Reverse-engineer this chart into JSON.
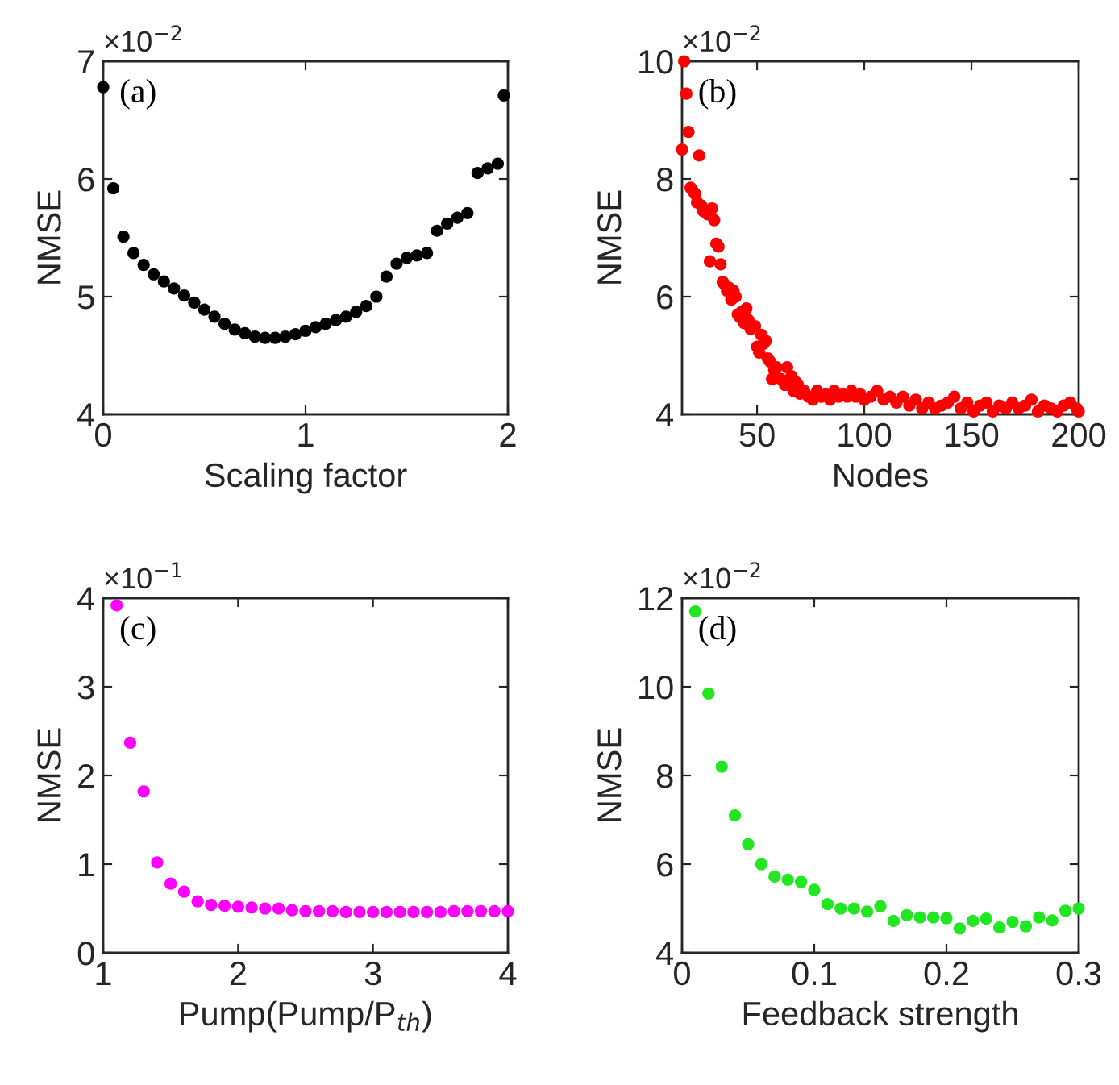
{
  "chart_data": [
    {
      "type": "scatter",
      "xlabel": "Scaling factor",
      "ylabel": "NMSE",
      "annotations": [
        "(a)",
        "×10$^{−2}$"
      ],
      "xlim": [
        0,
        2
      ],
      "ylim": [
        4,
        7
      ],
      "xticks": [
        0,
        1,
        2
      ],
      "yticks": [
        4,
        5,
        6,
        7
      ],
      "marker": "circle",
      "grid": false,
      "x": [
        0,
        0.05,
        0.1,
        0.15,
        0.2,
        0.25,
        0.3,
        0.35,
        0.4,
        0.45,
        0.5,
        0.55,
        0.6,
        0.65,
        0.7,
        0.75,
        0.8,
        0.85,
        0.9,
        0.95,
        1.0,
        1.05,
        1.1,
        1.15,
        1.2,
        1.25,
        1.3,
        1.35,
        1.4,
        1.45,
        1.5,
        1.55,
        1.6,
        1.65,
        1.7,
        1.75,
        1.8,
        1.85,
        1.9,
        1.95,
        1.98
      ],
      "series": [
        {
          "color": "#000000",
          "values": [
            6.78,
            5.92,
            5.51,
            5.37,
            5.27,
            5.19,
            5.13,
            5.07,
            5.01,
            4.95,
            4.89,
            4.83,
            4.77,
            4.72,
            4.69,
            4.66,
            4.65,
            4.65,
            4.66,
            4.68,
            4.71,
            4.74,
            4.77,
            4.8,
            4.83,
            4.87,
            4.92,
            5.0,
            5.17,
            5.28,
            5.33,
            5.35,
            5.37,
            5.56,
            5.62,
            5.67,
            5.71,
            6.05,
            6.09,
            6.13,
            6.71
          ]
        }
      ]
    },
    {
      "type": "scatter",
      "xlabel": "Nodes",
      "ylabel": "NMSE",
      "annotations": [
        "(b)",
        "×10$^{−2}$"
      ],
      "xlim": [
        15,
        200
      ],
      "ylim": [
        4,
        10
      ],
      "xticks": [
        50,
        100,
        150,
        200
      ],
      "yticks": [
        4,
        6,
        8,
        10
      ],
      "marker": "circle",
      "grid": false,
      "x": [
        15,
        16,
        17,
        18,
        19,
        20,
        21,
        22,
        23,
        24,
        25,
        27,
        28,
        29,
        30,
        31,
        32,
        33,
        34,
        35,
        36,
        37,
        38,
        39,
        40,
        41,
        42,
        43,
        44,
        45,
        46,
        47,
        49,
        50,
        51,
        52,
        53,
        54,
        55,
        56,
        57,
        58,
        59,
        61,
        63,
        64,
        66,
        67,
        68,
        69,
        70,
        72,
        74,
        76,
        78,
        80,
        82,
        84,
        86,
        88,
        90,
        92,
        94,
        96,
        98,
        100,
        103,
        106,
        109,
        112,
        115,
        118,
        121,
        124,
        127,
        130,
        133,
        136,
        139,
        142,
        145,
        148,
        151,
        154,
        157,
        160,
        163,
        166,
        169,
        172,
        175,
        178,
        181,
        184,
        187,
        190,
        193,
        196,
        199,
        200
      ],
      "series": [
        {
          "color": "#ff0000",
          "values": [
            8.5,
            10.0,
            9.45,
            8.8,
            7.85,
            7.8,
            7.75,
            7.6,
            8.4,
            7.55,
            7.45,
            7.4,
            6.6,
            7.5,
            7.3,
            6.9,
            6.85,
            6.55,
            6.25,
            6.2,
            6.1,
            6.15,
            5.95,
            6.1,
            6.0,
            5.7,
            5.65,
            5.75,
            5.55,
            5.8,
            5.6,
            5.45,
            5.5,
            5.15,
            5.05,
            5.35,
            5.2,
            5.25,
            4.95,
            4.9,
            4.6,
            4.75,
            4.8,
            4.6,
            4.5,
            4.8,
            4.65,
            4.4,
            4.55,
            4.5,
            4.35,
            4.4,
            4.3,
            4.25,
            4.4,
            4.3,
            4.35,
            4.25,
            4.4,
            4.3,
            4.35,
            4.3,
            4.4,
            4.3,
            4.35,
            4.25,
            4.3,
            4.4,
            4.25,
            4.3,
            4.2,
            4.3,
            4.15,
            4.25,
            4.1,
            4.2,
            4.1,
            4.15,
            4.2,
            4.3,
            4.1,
            4.2,
            4.05,
            4.15,
            4.2,
            4.05,
            4.15,
            4.1,
            4.2,
            4.1,
            4.15,
            4.25,
            4.05,
            4.15,
            4.1,
            4.05,
            4.15,
            4.2,
            4.1,
            4.05
          ]
        }
      ]
    },
    {
      "type": "scatter",
      "xlabel": "Pump(Pump/P$_{th}$)",
      "ylabel": "NMSE",
      "annotations": [
        "(c)",
        "×10$^{−1}$"
      ],
      "xlim": [
        1,
        4
      ],
      "ylim": [
        0,
        4
      ],
      "xticks": [
        1,
        2,
        3,
        4
      ],
      "yticks": [
        0,
        1,
        2,
        3,
        4
      ],
      "marker": "circle",
      "grid": false,
      "x": [
        1.1,
        1.2,
        1.3,
        1.4,
        1.5,
        1.6,
        1.7,
        1.8,
        1.9,
        2.0,
        2.1,
        2.2,
        2.3,
        2.4,
        2.5,
        2.6,
        2.7,
        2.8,
        2.9,
        3.0,
        3.1,
        3.2,
        3.3,
        3.4,
        3.5,
        3.6,
        3.7,
        3.8,
        3.9,
        4.0
      ],
      "series": [
        {
          "color": "#ff00ff",
          "values": [
            3.92,
            2.37,
            1.82,
            1.02,
            0.78,
            0.69,
            0.58,
            0.54,
            0.53,
            0.52,
            0.51,
            0.5,
            0.5,
            0.48,
            0.47,
            0.47,
            0.47,
            0.46,
            0.46,
            0.46,
            0.46,
            0.46,
            0.46,
            0.46,
            0.46,
            0.47,
            0.47,
            0.47,
            0.47,
            0.47
          ]
        }
      ]
    },
    {
      "type": "scatter",
      "xlabel": "Feedback strength",
      "ylabel": "NMSE",
      "annotations": [
        "(d)",
        "×10$^{−2}$"
      ],
      "xlim": [
        0,
        0.3
      ],
      "ylim": [
        4,
        12
      ],
      "xticks": [
        0,
        0.1,
        0.2,
        0.3
      ],
      "yticks": [
        4,
        6,
        8,
        10,
        12
      ],
      "marker": "circle",
      "grid": false,
      "x": [
        0.01,
        0.02,
        0.03,
        0.04,
        0.05,
        0.06,
        0.07,
        0.08,
        0.09,
        0.1,
        0.11,
        0.12,
        0.13,
        0.14,
        0.15,
        0.16,
        0.17,
        0.18,
        0.19,
        0.2,
        0.21,
        0.22,
        0.23,
        0.24,
        0.25,
        0.26,
        0.27,
        0.28,
        0.29,
        0.3
      ],
      "series": [
        {
          "color": "#22e622",
          "values": [
            11.7,
            9.85,
            8.2,
            7.1,
            6.45,
            6.0,
            5.72,
            5.65,
            5.6,
            5.42,
            5.1,
            5.0,
            5.0,
            4.93,
            5.05,
            4.72,
            4.85,
            4.8,
            4.8,
            4.78,
            4.55,
            4.72,
            4.77,
            4.57,
            4.7,
            4.6,
            4.8,
            4.73,
            4.95,
            5.0
          ]
        }
      ]
    }
  ]
}
